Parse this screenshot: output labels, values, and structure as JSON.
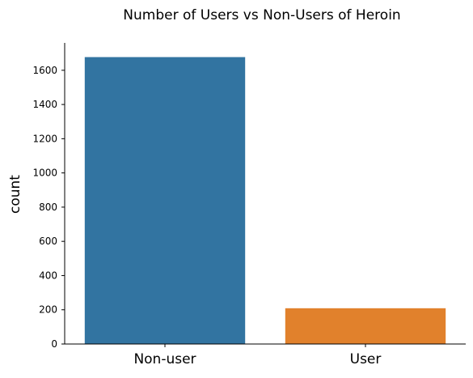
{
  "chart_data": {
    "type": "bar",
    "title": "Number of Users vs Non-Users of Heroin",
    "xlabel": "",
    "ylabel": "count",
    "categories": [
      "Non-user",
      "User"
    ],
    "values": [
      1677,
      209
    ],
    "colors": [
      "#3274a1",
      "#e1812c"
    ],
    "ylim": [
      0,
      1760
    ],
    "yticks": [
      0,
      200,
      400,
      600,
      800,
      1000,
      1200,
      1400,
      1600
    ],
    "grid": false,
    "legend": "none"
  }
}
